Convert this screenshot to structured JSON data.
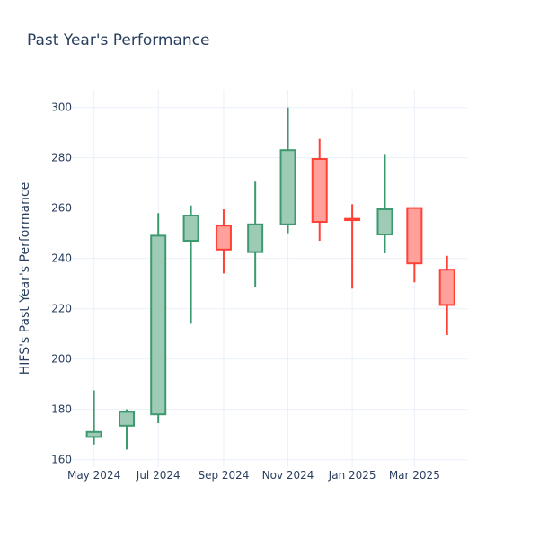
{
  "chart_data": {
    "type": "candlestick",
    "title": "Past Year's Performance",
    "ylabel": "HIFS's Past Year's Performance",
    "xlabel": "",
    "ylim": [
      157,
      307
    ],
    "yticks": [
      160,
      180,
      200,
      220,
      240,
      260,
      280,
      300
    ],
    "xrange": [
      "2024-04-10",
      "2025-04-20"
    ],
    "xticks": [
      {
        "date": "2024-05-01",
        "label": "May 2024"
      },
      {
        "date": "2024-07-01",
        "label": "Jul 2024"
      },
      {
        "date": "2024-09-01",
        "label": "Sep 2024"
      },
      {
        "date": "2024-11-01",
        "label": "Nov 2024"
      },
      {
        "date": "2025-01-01",
        "label": "Jan 2025"
      },
      {
        "date": "2025-03-01",
        "label": "Mar 2025"
      }
    ],
    "grid": true,
    "colors": {
      "increasing_line": "#3d9970",
      "increasing_fill": "#9ecbb5",
      "decreasing_line": "#ff4136",
      "decreasing_fill": "#ffa09a",
      "title": "#2a3f5f",
      "grid": "#ebf0f8"
    },
    "candles": [
      {
        "date": "2024-05-01",
        "open": 169,
        "high": 187.5,
        "low": 166,
        "close": 171
      },
      {
        "date": "2024-06-01",
        "open": 173.5,
        "high": 180,
        "low": 164,
        "close": 179
      },
      {
        "date": "2024-07-01",
        "open": 178,
        "high": 258,
        "low": 174.5,
        "close": 249
      },
      {
        "date": "2024-08-01",
        "open": 247,
        "high": 261,
        "low": 214,
        "close": 257
      },
      {
        "date": "2024-09-01",
        "open": 253,
        "high": 259.5,
        "low": 234,
        "close": 243.5
      },
      {
        "date": "2024-10-01",
        "open": 242.5,
        "high": 270.5,
        "low": 228.5,
        "close": 253.5
      },
      {
        "date": "2024-11-01",
        "open": 253.5,
        "high": 300,
        "low": 250,
        "close": 283
      },
      {
        "date": "2024-12-01",
        "open": 279.5,
        "high": 287.5,
        "low": 247,
        "close": 254.5
      },
      {
        "date": "2025-01-01",
        "open": 255.7,
        "high": 261.5,
        "low": 228,
        "close": 255.2
      },
      {
        "date": "2025-02-01",
        "open": 249.5,
        "high": 281.5,
        "low": 242,
        "close": 259.5
      },
      {
        "date": "2025-03-01",
        "open": 260,
        "high": 260,
        "low": 230.5,
        "close": 238
      },
      {
        "date": "2025-04-01",
        "open": 235.5,
        "high": 241,
        "low": 209.5,
        "close": 221.5
      }
    ]
  }
}
